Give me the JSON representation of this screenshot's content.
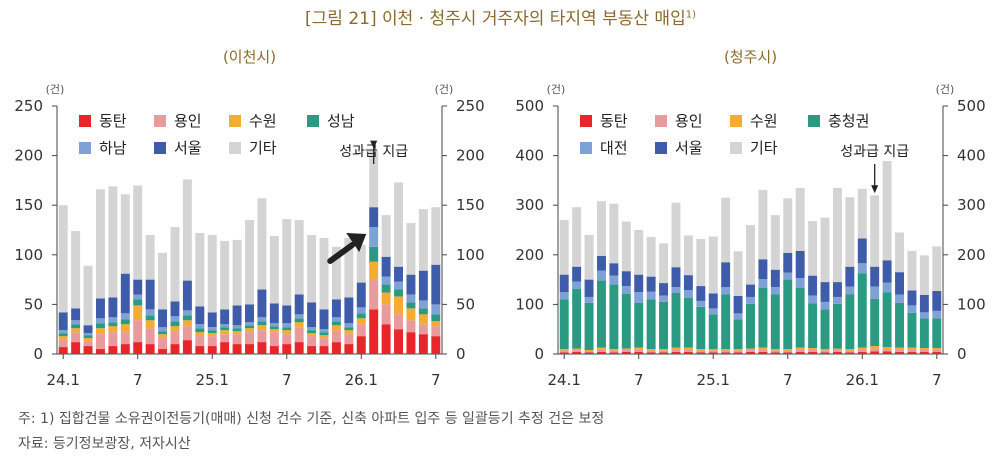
{
  "page": {
    "title": "[그림 21] 이천 · 청주시 거주자의 타지역 부동산 매입",
    "title_sup": "1)",
    "footnote": "주: 1) 집합건물 소유권이전등기(매매) 신청 건수 기준, 신축 아파트 입주 등 일괄등기 추정 건은 보정",
    "source": "자료: 등기정보광장, 저자시산"
  },
  "colors": {
    "accent": "#8a6a2f",
    "동탄": "#e8262a",
    "용인": "#e89a9c",
    "수원": "#f4ac32",
    "성남": "#2a9a83",
    "충청권": "#2a9a83",
    "하남": "#7ea2d6",
    "대전": "#7ea2d6",
    "서울": "#3e5ca9",
    "기타": "#d4d4d4"
  },
  "chart_data": [
    {
      "type": "bar",
      "stacked": true,
      "subtitle": "(이천시)",
      "yunit_left": "(건)",
      "yunit_right": "(건)",
      "ylim": [
        0,
        250
      ],
      "yticks": [
        0,
        50,
        100,
        150,
        200,
        250
      ],
      "xtick_labels": [
        {
          "index": 0,
          "label": "24.1"
        },
        {
          "index": 6,
          "label": "7"
        },
        {
          "index": 12,
          "label": "25.1"
        },
        {
          "index": 18,
          "label": "7"
        },
        {
          "index": 24,
          "label": "26.1"
        },
        {
          "index": 30,
          "label": "7"
        }
      ],
      "annotation": "성과급 지급",
      "annotation_index": 25,
      "legend": [
        "동탄",
        "용인",
        "수원",
        "성남",
        "하남",
        "서울",
        "기타"
      ],
      "series": [
        {
          "name": "동탄",
          "values": [
            7,
            12,
            8,
            5,
            8,
            10,
            12,
            10,
            5,
            10,
            14,
            8,
            8,
            12,
            10,
            10,
            12,
            8,
            10,
            12,
            8,
            8,
            12,
            10,
            18,
            45,
            30,
            25,
            22,
            20,
            18
          ]
        },
        {
          "name": "용인",
          "values": [
            8,
            10,
            5,
            15,
            14,
            12,
            22,
            16,
            12,
            13,
            14,
            10,
            10,
            8,
            10,
            12,
            12,
            14,
            10,
            15,
            10,
            8,
            12,
            10,
            12,
            30,
            20,
            15,
            12,
            10,
            10
          ]
        },
        {
          "name": "수원",
          "values": [
            3,
            4,
            3,
            6,
            6,
            8,
            15,
            8,
            3,
            5,
            6,
            4,
            3,
            4,
            3,
            4,
            5,
            3,
            4,
            5,
            3,
            3,
            5,
            4,
            6,
            18,
            12,
            18,
            12,
            10,
            5
          ]
        },
        {
          "name": "성남",
          "values": [
            3,
            4,
            3,
            5,
            4,
            5,
            6,
            5,
            3,
            5,
            5,
            4,
            3,
            3,
            3,
            3,
            4,
            3,
            3,
            4,
            3,
            3,
            4,
            3,
            5,
            15,
            8,
            7,
            6,
            6,
            7
          ]
        },
        {
          "name": "하남",
          "values": [
            3,
            4,
            2,
            5,
            5,
            6,
            5,
            6,
            4,
            5,
            5,
            4,
            3,
            3,
            3,
            3,
            4,
            3,
            4,
            4,
            3,
            3,
            4,
            4,
            6,
            20,
            8,
            8,
            8,
            8,
            10
          ]
        },
        {
          "name": "서울",
          "values": [
            18,
            12,
            8,
            20,
            20,
            40,
            15,
            30,
            18,
            15,
            30,
            18,
            15,
            15,
            20,
            18,
            28,
            20,
            18,
            20,
            25,
            20,
            18,
            26,
            25,
            20,
            20,
            15,
            20,
            30,
            40
          ]
        },
        {
          "name": "기타",
          "values": [
            108,
            78,
            60,
            110,
            112,
            80,
            95,
            45,
            57,
            75,
            102,
            74,
            78,
            69,
            66,
            85,
            92,
            68,
            87,
            75,
            68,
            72,
            53,
            60,
            38,
            57,
            42,
            85,
            52,
            62,
            58
          ]
        }
      ]
    },
    {
      "type": "bar",
      "stacked": true,
      "subtitle": "(청주시)",
      "yunit_left": "(건)",
      "yunit_right": "(건)",
      "ylim": [
        0,
        500
      ],
      "yticks": [
        0,
        100,
        200,
        300,
        400,
        500
      ],
      "xtick_labels": [
        {
          "index": 0,
          "label": "24.1"
        },
        {
          "index": 6,
          "label": "7"
        },
        {
          "index": 12,
          "label": "25.1"
        },
        {
          "index": 18,
          "label": "7"
        },
        {
          "index": 24,
          "label": "26.1"
        },
        {
          "index": 30,
          "label": "7"
        }
      ],
      "annotation": "성과급 지급",
      "annotation_index": 25,
      "legend": [
        "동탄",
        "용인",
        "수원",
        "충청권",
        "대전",
        "서울",
        "기타"
      ],
      "series": [
        {
          "name": "동탄",
          "values": [
            3,
            4,
            3,
            4,
            3,
            4,
            4,
            3,
            3,
            4,
            4,
            3,
            3,
            3,
            3,
            4,
            4,
            3,
            3,
            4,
            4,
            3,
            4,
            3,
            4,
            5,
            5,
            4,
            4,
            4,
            4
          ]
        },
        {
          "name": "용인",
          "values": [
            4,
            4,
            3,
            5,
            4,
            4,
            5,
            4,
            4,
            5,
            5,
            4,
            4,
            4,
            4,
            4,
            5,
            4,
            4,
            5,
            5,
            4,
            4,
            4,
            5,
            6,
            5,
            5,
            5,
            5,
            5
          ]
        },
        {
          "name": "수원",
          "values": [
            3,
            3,
            2,
            4,
            3,
            3,
            4,
            3,
            3,
            4,
            4,
            3,
            3,
            3,
            3,
            3,
            4,
            3,
            3,
            4,
            3,
            3,
            3,
            3,
            4,
            5,
            4,
            4,
            4,
            3,
            3
          ]
        },
        {
          "name": "충청권",
          "values": [
            100,
            120,
            95,
            135,
            130,
            110,
            90,
            100,
            95,
            110,
            100,
            85,
            70,
            110,
            60,
            90,
            120,
            110,
            140,
            120,
            90,
            80,
            90,
            110,
            150,
            95,
            110,
            90,
            70,
            60,
            60
          ]
        },
        {
          "name": "대전",
          "values": [
            15,
            15,
            12,
            20,
            18,
            16,
            22,
            16,
            13,
            12,
            16,
            12,
            12,
            15,
            12,
            14,
            18,
            15,
            14,
            20,
            16,
            15,
            14,
            16,
            20,
            25,
            20,
            17,
            15,
            12,
            15
          ]
        },
        {
          "name": "서울",
          "values": [
            35,
            30,
            35,
            30,
            25,
            30,
            35,
            30,
            25,
            40,
            30,
            30,
            30,
            50,
            35,
            25,
            40,
            35,
            40,
            55,
            40,
            40,
            30,
            40,
            50,
            40,
            45,
            45,
            30,
            35,
            40
          ]
        },
        {
          "name": "기타",
          "values": [
            110,
            120,
            90,
            110,
            120,
            100,
            90,
            80,
            80,
            130,
            80,
            95,
            115,
            130,
            90,
            120,
            140,
            110,
            110,
            127,
            110,
            130,
            190,
            140,
            100,
            144,
            200,
            80,
            80,
            80,
            90
          ]
        }
      ]
    }
  ]
}
